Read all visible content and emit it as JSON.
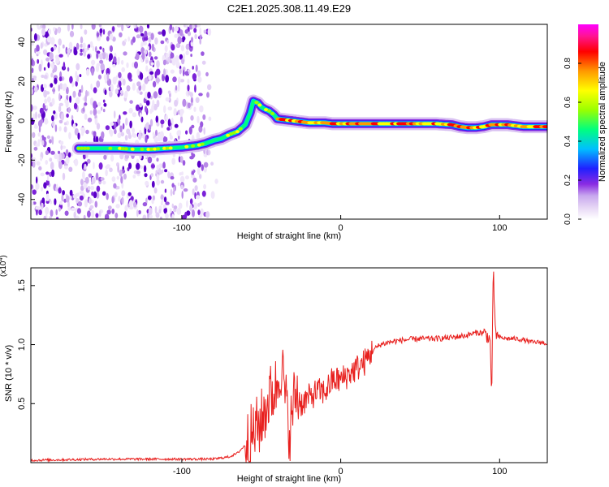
{
  "title": "C2E1.2025.308.11.49.E29",
  "colors": {
    "snr_line": "#e8201e",
    "frame": "#000000",
    "background": "#ffffff",
    "scatter": "#8a2be2"
  },
  "chart_data": [
    {
      "type": "heatmap",
      "xlabel": "Height of straight line (km)",
      "ylabel": "Frequency (Hz)",
      "xlim": [
        -195,
        130
      ],
      "ylim": [
        -50,
        49
      ],
      "x_ticks": [
        -100,
        0,
        100
      ],
      "x_tick_labels": [
        "-100",
        "0",
        "100"
      ],
      "y_ticks": [
        -40,
        -20,
        0,
        20,
        40
      ],
      "y_tick_labels": [
        "-40",
        "-20",
        "0",
        "20",
        "40"
      ],
      "noise_region_x": [
        -195,
        -77
      ],
      "ridge": {
        "x": [
          -165,
          -150,
          -140,
          -130,
          -120,
          -110,
          -100,
          -95,
          -90,
          -85,
          -80,
          -75,
          -70,
          -65,
          -60,
          -57,
          -55,
          -52,
          -50,
          -48,
          -45,
          -42,
          -40,
          -35,
          -30,
          -25,
          -20,
          -15,
          -10,
          -5,
          0,
          10,
          20,
          30,
          40,
          50,
          60,
          70,
          75,
          80,
          85,
          90,
          95,
          100,
          105,
          110,
          115,
          120,
          125,
          130
        ],
        "y": [
          -14,
          -14,
          -14,
          -14.5,
          -14.5,
          -14,
          -13.5,
          -13,
          -12.5,
          -11.5,
          -10,
          -9,
          -7,
          -5.5,
          -2,
          4,
          10,
          9,
          7,
          6,
          5,
          3,
          1,
          0.5,
          0,
          -0.5,
          -1,
          -1,
          -1,
          -1.5,
          -1.5,
          -1.5,
          -1.5,
          -1.5,
          -1.5,
          -1.5,
          -1.5,
          -2,
          -3,
          -3.5,
          -3.5,
          -3,
          -2,
          -2,
          -2,
          -2.5,
          -3,
          -3,
          -3,
          -3
        ]
      },
      "colorbar": {
        "label": "Normalized spectral amplitude",
        "range": [
          0,
          1
        ],
        "ticks": [
          0.0,
          0.2,
          0.4,
          0.6,
          0.8
        ],
        "tick_labels": [
          "0.0",
          "0.2",
          "0.4",
          "0.6",
          "0.8"
        ],
        "colormap": [
          "#ffffff",
          "#e6d6f5",
          "#c8a8ee",
          "#8a2be2",
          "#2020ff",
          "#00bfff",
          "#00ff7f",
          "#9aff00",
          "#ffff00",
          "#ff9900",
          "#ff0000",
          "#ff1493",
          "#ff00ff"
        ]
      }
    },
    {
      "type": "line",
      "xlabel": "Height of straight line (km)",
      "ylabel": "SNR (10 * v/v)",
      "y_scale_label": "(x10",
      "y_scale_exponent": "4",
      "xlim": [
        -195,
        130
      ],
      "ylim": [
        0,
        1.65
      ],
      "x_ticks": [
        -100,
        0,
        100
      ],
      "x_tick_labels": [
        "-100",
        "0",
        "100"
      ],
      "y_ticks": [
        0.5,
        1.0,
        1.5
      ],
      "y_tick_labels": [
        "0.5",
        "1.0",
        "1.5"
      ],
      "series": [
        {
          "name": "SNR",
          "x": [
            -195,
            -150,
            -100,
            -80,
            -70,
            -65,
            -60,
            -55,
            -50,
            -45,
            -40,
            -38,
            -36,
            -34,
            -32,
            -30,
            -28,
            -25,
            -20,
            -15,
            -10,
            -5,
            0,
            5,
            10,
            15,
            20,
            25,
            30,
            35,
            40,
            50,
            60,
            70,
            80,
            85,
            90,
            94,
            95,
            96,
            97,
            98,
            100,
            105,
            110,
            115,
            120,
            125,
            130
          ],
          "y": [
            0.02,
            0.03,
            0.03,
            0.03,
            0.05,
            0.08,
            0.15,
            0.25,
            0.35,
            0.55,
            0.65,
            0.85,
            0.7,
            0.45,
            0.25,
            0.5,
            0.6,
            0.5,
            0.55,
            0.6,
            0.6,
            0.7,
            0.7,
            0.75,
            0.8,
            0.85,
            0.95,
            1.0,
            1.02,
            1.03,
            1.04,
            1.05,
            1.05,
            1.06,
            1.08,
            1.1,
            1.1,
            1.05,
            0.55,
            1.65,
            1.2,
            1.08,
            1.06,
            1.05,
            1.05,
            1.04,
            1.02,
            1.02,
            1.01
          ]
        }
      ]
    }
  ]
}
